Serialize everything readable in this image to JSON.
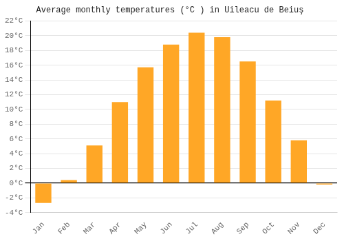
{
  "chart_data": {
    "type": "bar",
    "title": "Average monthly temperatures (°C ) in Uileacu de Beiuş",
    "categories": [
      "Jan",
      "Feb",
      "Mar",
      "Apr",
      "May",
      "Jun",
      "Jul",
      "Aug",
      "Sep",
      "Oct",
      "Nov",
      "Dec"
    ],
    "values": [
      -2.7,
      0.4,
      5.1,
      11.0,
      15.7,
      18.8,
      20.4,
      19.8,
      16.5,
      11.2,
      5.8,
      -0.2
    ],
    "color": "#FFA726",
    "ylim": [
      -4,
      22
    ],
    "yticks": [
      {
        "value": -4,
        "label": "-4°C"
      },
      {
        "value": -2,
        "label": "-2°C"
      },
      {
        "value": 0,
        "label": "0°C"
      },
      {
        "value": 2,
        "label": "2°C"
      },
      {
        "value": 4,
        "label": "4°C"
      },
      {
        "value": 6,
        "label": "6°C"
      },
      {
        "value": 8,
        "label": "8°C"
      },
      {
        "value": 10,
        "label": "10°C"
      },
      {
        "value": 12,
        "label": "12°C"
      },
      {
        "value": 14,
        "label": "14°C"
      },
      {
        "value": 16,
        "label": "16°C"
      },
      {
        "value": 18,
        "label": "18°C"
      },
      {
        "value": 20,
        "label": "20°C"
      },
      {
        "value": 22,
        "label": "22°C"
      }
    ],
    "grid": true
  }
}
